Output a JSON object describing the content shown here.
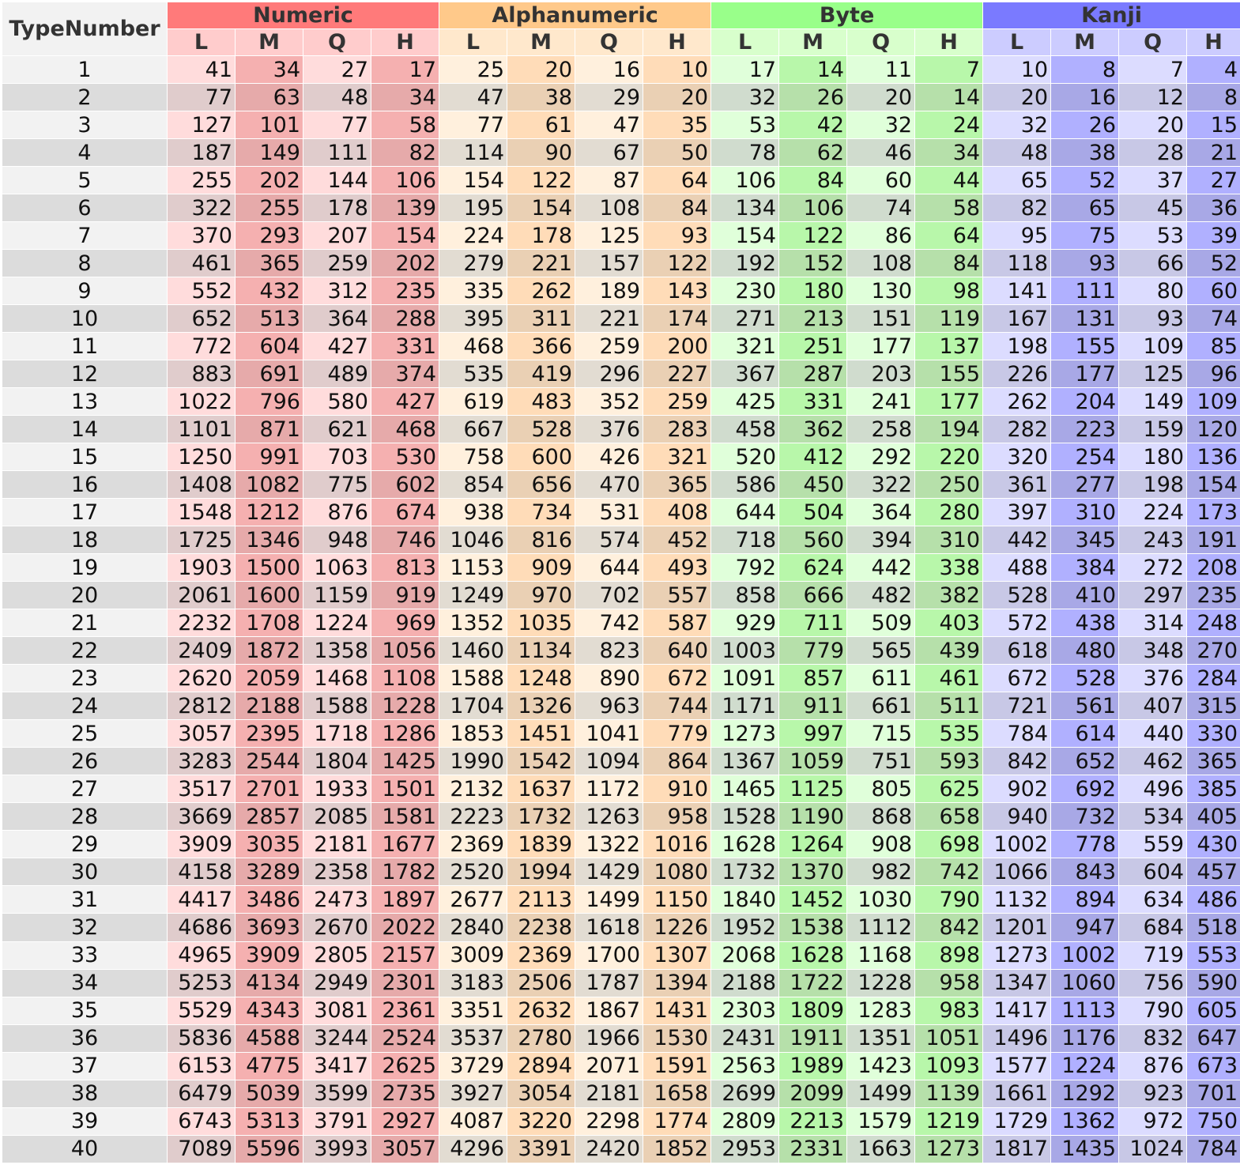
{
  "table": {
    "corner_label": "TypeNumber",
    "groups": [
      {
        "label": "Numeric",
        "header_color": "#ff7a7a",
        "sub_color": "#ffcccc",
        "cell_light": "#ffdcdc",
        "cell_light_alt": "#f5b0b0",
        "cell_dark": "#e0cccc",
        "cell_dark_alt": "#e6aaaa"
      },
      {
        "label": "Alphanumeric",
        "header_color": "#ffc98a",
        "sub_color": "#ffe8cc",
        "cell_light": "#fff0dd",
        "cell_light_alt": "#ffdcb8",
        "cell_dark": "#e2dcd2",
        "cell_dark_alt": "#ead0b4"
      },
      {
        "label": "Byte",
        "header_color": "#99ff8a",
        "sub_color": "#d8ffcc",
        "cell_light": "#e0ffda",
        "cell_light_alt": "#b8f7aa",
        "cell_dark": "#d0dcce",
        "cell_dark_alt": "#b6e0aa"
      },
      {
        "label": "Kanji",
        "header_color": "#7a7aff",
        "sub_color": "#ccccff",
        "cell_light": "#dcdcff",
        "cell_light_alt": "#b0b0ff",
        "cell_dark": "#c8c8e6",
        "cell_dark_alt": "#a8a8e6"
      }
    ],
    "levels": [
      "L",
      "M",
      "Q",
      "H"
    ],
    "rows": [
      {
        "type": "1",
        "values": [
          41,
          34,
          27,
          17,
          25,
          20,
          16,
          10,
          17,
          14,
          11,
          7,
          10,
          8,
          7,
          4
        ]
      },
      {
        "type": "2",
        "values": [
          77,
          63,
          48,
          34,
          47,
          38,
          29,
          20,
          32,
          26,
          20,
          14,
          20,
          16,
          12,
          8
        ]
      },
      {
        "type": "3",
        "values": [
          127,
          101,
          77,
          58,
          77,
          61,
          47,
          35,
          53,
          42,
          32,
          24,
          32,
          26,
          20,
          15
        ]
      },
      {
        "type": "4",
        "values": [
          187,
          149,
          111,
          82,
          114,
          90,
          67,
          50,
          78,
          62,
          46,
          34,
          48,
          38,
          28,
          21
        ]
      },
      {
        "type": "5",
        "values": [
          255,
          202,
          144,
          106,
          154,
          122,
          87,
          64,
          106,
          84,
          60,
          44,
          65,
          52,
          37,
          27
        ]
      },
      {
        "type": "6",
        "values": [
          322,
          255,
          178,
          139,
          195,
          154,
          108,
          84,
          134,
          106,
          74,
          58,
          82,
          65,
          45,
          36
        ]
      },
      {
        "type": "7",
        "values": [
          370,
          293,
          207,
          154,
          224,
          178,
          125,
          93,
          154,
          122,
          86,
          64,
          95,
          75,
          53,
          39
        ]
      },
      {
        "type": "8",
        "values": [
          461,
          365,
          259,
          202,
          279,
          221,
          157,
          122,
          192,
          152,
          108,
          84,
          118,
          93,
          66,
          52
        ]
      },
      {
        "type": "9",
        "values": [
          552,
          432,
          312,
          235,
          335,
          262,
          189,
          143,
          230,
          180,
          130,
          98,
          141,
          111,
          80,
          60
        ]
      },
      {
        "type": "10",
        "values": [
          652,
          513,
          364,
          288,
          395,
          311,
          221,
          174,
          271,
          213,
          151,
          119,
          167,
          131,
          93,
          74
        ]
      },
      {
        "type": "11",
        "values": [
          772,
          604,
          427,
          331,
          468,
          366,
          259,
          200,
          321,
          251,
          177,
          137,
          198,
          155,
          109,
          85
        ]
      },
      {
        "type": "12",
        "values": [
          883,
          691,
          489,
          374,
          535,
          419,
          296,
          227,
          367,
          287,
          203,
          155,
          226,
          177,
          125,
          96
        ]
      },
      {
        "type": "13",
        "values": [
          1022,
          796,
          580,
          427,
          619,
          483,
          352,
          259,
          425,
          331,
          241,
          177,
          262,
          204,
          149,
          109
        ]
      },
      {
        "type": "14",
        "values": [
          1101,
          871,
          621,
          468,
          667,
          528,
          376,
          283,
          458,
          362,
          258,
          194,
          282,
          223,
          159,
          120
        ]
      },
      {
        "type": "15",
        "values": [
          1250,
          991,
          703,
          530,
          758,
          600,
          426,
          321,
          520,
          412,
          292,
          220,
          320,
          254,
          180,
          136
        ]
      },
      {
        "type": "16",
        "values": [
          1408,
          1082,
          775,
          602,
          854,
          656,
          470,
          365,
          586,
          450,
          322,
          250,
          361,
          277,
          198,
          154
        ]
      },
      {
        "type": "17",
        "values": [
          1548,
          1212,
          876,
          674,
          938,
          734,
          531,
          408,
          644,
          504,
          364,
          280,
          397,
          310,
          224,
          173
        ]
      },
      {
        "type": "18",
        "values": [
          1725,
          1346,
          948,
          746,
          1046,
          816,
          574,
          452,
          718,
          560,
          394,
          310,
          442,
          345,
          243,
          191
        ]
      },
      {
        "type": "19",
        "values": [
          1903,
          1500,
          1063,
          813,
          1153,
          909,
          644,
          493,
          792,
          624,
          442,
          338,
          488,
          384,
          272,
          208
        ]
      },
      {
        "type": "20",
        "values": [
          2061,
          1600,
          1159,
          919,
          1249,
          970,
          702,
          557,
          858,
          666,
          482,
          382,
          528,
          410,
          297,
          235
        ]
      },
      {
        "type": "21",
        "values": [
          2232,
          1708,
          1224,
          969,
          1352,
          1035,
          742,
          587,
          929,
          711,
          509,
          403,
          572,
          438,
          314,
          248
        ]
      },
      {
        "type": "22",
        "values": [
          2409,
          1872,
          1358,
          1056,
          1460,
          1134,
          823,
          640,
          1003,
          779,
          565,
          439,
          618,
          480,
          348,
          270
        ]
      },
      {
        "type": "23",
        "values": [
          2620,
          2059,
          1468,
          1108,
          1588,
          1248,
          890,
          672,
          1091,
          857,
          611,
          461,
          672,
          528,
          376,
          284
        ]
      },
      {
        "type": "24",
        "values": [
          2812,
          2188,
          1588,
          1228,
          1704,
          1326,
          963,
          744,
          1171,
          911,
          661,
          511,
          721,
          561,
          407,
          315
        ]
      },
      {
        "type": "25",
        "values": [
          3057,
          2395,
          1718,
          1286,
          1853,
          1451,
          1041,
          779,
          1273,
          997,
          715,
          535,
          784,
          614,
          440,
          330
        ]
      },
      {
        "type": "26",
        "values": [
          3283,
          2544,
          1804,
          1425,
          1990,
          1542,
          1094,
          864,
          1367,
          1059,
          751,
          593,
          842,
          652,
          462,
          365
        ]
      },
      {
        "type": "27",
        "values": [
          3517,
          2701,
          1933,
          1501,
          2132,
          1637,
          1172,
          910,
          1465,
          1125,
          805,
          625,
          902,
          692,
          496,
          385
        ]
      },
      {
        "type": "28",
        "values": [
          3669,
          2857,
          2085,
          1581,
          2223,
          1732,
          1263,
          958,
          1528,
          1190,
          868,
          658,
          940,
          732,
          534,
          405
        ]
      },
      {
        "type": "29",
        "values": [
          3909,
          3035,
          2181,
          1677,
          2369,
          1839,
          1322,
          1016,
          1628,
          1264,
          908,
          698,
          1002,
          778,
          559,
          430
        ]
      },
      {
        "type": "30",
        "values": [
          4158,
          3289,
          2358,
          1782,
          2520,
          1994,
          1429,
          1080,
          1732,
          1370,
          982,
          742,
          1066,
          843,
          604,
          457
        ]
      },
      {
        "type": "31",
        "values": [
          4417,
          3486,
          2473,
          1897,
          2677,
          2113,
          1499,
          1150,
          1840,
          1452,
          1030,
          790,
          1132,
          894,
          634,
          486
        ]
      },
      {
        "type": "32",
        "values": [
          4686,
          3693,
          2670,
          2022,
          2840,
          2238,
          1618,
          1226,
          1952,
          1538,
          1112,
          842,
          1201,
          947,
          684,
          518
        ]
      },
      {
        "type": "33",
        "values": [
          4965,
          3909,
          2805,
          2157,
          3009,
          2369,
          1700,
          1307,
          2068,
          1628,
          1168,
          898,
          1273,
          1002,
          719,
          553
        ]
      },
      {
        "type": "34",
        "values": [
          5253,
          4134,
          2949,
          2301,
          3183,
          2506,
          1787,
          1394,
          2188,
          1722,
          1228,
          958,
          1347,
          1060,
          756,
          590
        ]
      },
      {
        "type": "35",
        "values": [
          5529,
          4343,
          3081,
          2361,
          3351,
          2632,
          1867,
          1431,
          2303,
          1809,
          1283,
          983,
          1417,
          1113,
          790,
          605
        ]
      },
      {
        "type": "36",
        "values": [
          5836,
          4588,
          3244,
          2524,
          3537,
          2780,
          1966,
          1530,
          2431,
          1911,
          1351,
          1051,
          1496,
          1176,
          832,
          647
        ]
      },
      {
        "type": "37",
        "values": [
          6153,
          4775,
          3417,
          2625,
          3729,
          2894,
          2071,
          1591,
          2563,
          1989,
          1423,
          1093,
          1577,
          1224,
          876,
          673
        ]
      },
      {
        "type": "38",
        "values": [
          6479,
          5039,
          3599,
          2735,
          3927,
          3054,
          2181,
          1658,
          2699,
          2099,
          1499,
          1139,
          1661,
          1292,
          923,
          701
        ]
      },
      {
        "type": "39",
        "values": [
          6743,
          5313,
          3791,
          2927,
          4087,
          3220,
          2298,
          1774,
          2809,
          2213,
          1579,
          1219,
          1729,
          1362,
          972,
          750
        ]
      },
      {
        "type": "40",
        "values": [
          7089,
          5596,
          3993,
          3057,
          4296,
          3391,
          2420,
          1852,
          2953,
          2331,
          1663,
          1273,
          1817,
          1435,
          1024,
          784
        ]
      }
    ]
  }
}
